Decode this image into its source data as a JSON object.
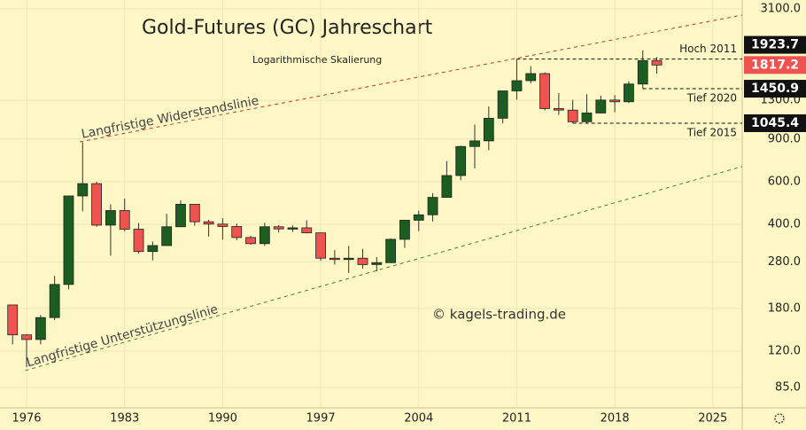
{
  "chart_data": {
    "type": "candlestick",
    "title": "Gold-Futures (GC) Jahreschart",
    "subtitle": "Logarithmische Skalierung",
    "watermark": "© kagels-trading.de",
    "x": [
      1975,
      1976,
      1977,
      1978,
      1979,
      1980,
      1981,
      1982,
      1983,
      1984,
      1985,
      1986,
      1987,
      1988,
      1989,
      1990,
      1991,
      1992,
      1993,
      1994,
      1995,
      1996,
      1997,
      1998,
      1999,
      2000,
      2001,
      2002,
      2003,
      2004,
      2005,
      2006,
      2007,
      2008,
      2009,
      2010,
      2011,
      2012,
      2013,
      2014,
      2015,
      2016,
      2017,
      2018,
      2019,
      2020,
      2021
    ],
    "open": [
      186,
      140,
      134,
      165,
      226,
      524,
      589,
      397,
      456,
      382,
      309,
      327,
      391,
      484,
      410,
      401,
      392,
      353,
      333,
      391,
      383,
      387,
      369,
      290,
      288,
      290,
      273,
      278,
      347,
      416,
      438,
      517,
      636,
      838,
      884,
      1096,
      1421,
      1566,
      1675,
      1202,
      1184,
      1060,
      1152,
      1303,
      1282,
      1517,
      1895
    ],
    "high": [
      186,
      141,
      169,
      245,
      524,
      873,
      600,
      484,
      511,
      405,
      340,
      442,
      502,
      485,
      418,
      424,
      403,
      359,
      406,
      397,
      396,
      416,
      369,
      313,
      326,
      317,
      293,
      350,
      417,
      456,
      538,
      730,
      845,
      1033,
      1226,
      1424,
      1923.7,
      1796,
      1696,
      1392,
      1307,
      1377,
      1358,
      1366,
      1557,
      2089,
      1959
    ],
    "low": [
      128,
      103,
      128,
      161,
      216,
      453,
      391,
      297,
      374,
      303,
      284,
      326,
      390,
      395,
      356,
      346,
      344,
      330,
      326,
      370,
      372,
      367,
      283,
      273,
      252,
      263,
      256,
      277,
      320,
      375,
      411,
      517,
      608,
      681,
      810,
      1044,
      1308,
      1527,
      1180,
      1131,
      1045.4,
      1046,
      1148,
      1160,
      1266,
      1450.9,
      1673
    ],
    "close": [
      140,
      134,
      165,
      226,
      524,
      589,
      397,
      456,
      382,
      309,
      327,
      391,
      484,
      410,
      401,
      392,
      353,
      333,
      391,
      383,
      387,
      369,
      290,
      288,
      290,
      273,
      278,
      347,
      416,
      438,
      517,
      636,
      838,
      884,
      1096,
      1421,
      1566,
      1675,
      1202,
      1184,
      1060,
      1152,
      1303,
      1282,
      1517,
      1895,
      1817.2
    ],
    "up_color": "#1b5e20",
    "down_color": "#ef5350",
    "log_scale": true,
    "grid": true,
    "xlim": [
      1974.1,
      2027.1
    ],
    "ylim": [
      70,
      3370
    ],
    "xticks": [
      1976,
      1983,
      1990,
      1997,
      2004,
      2011,
      2018,
      2025
    ],
    "yticks": [
      {
        "value": 3100,
        "label": "3100.0"
      },
      {
        "value": 1300,
        "label": "1300.0"
      },
      {
        "value": 900,
        "label": "900.0"
      },
      {
        "value": 600,
        "label": "600.0"
      },
      {
        "value": 400,
        "label": "400.0"
      },
      {
        "value": 280,
        "label": "280.0"
      },
      {
        "value": 180,
        "label": "180.0"
      },
      {
        "value": 120,
        "label": "120.0"
      },
      {
        "value": 85,
        "label": "85.0"
      }
    ],
    "trendlines": [
      {
        "label": "Langfristige Widerstandslinie",
        "color": "#c0392b",
        "points": [
          [
            1979.8,
            876
          ],
          [
            2027.1,
            2920
          ]
        ]
      },
      {
        "label": "Langfristige Unterstützungslinie",
        "color": "#4a7a3a",
        "points": [
          [
            1975.9,
            99.8
          ],
          [
            2027.1,
            693
          ]
        ]
      }
    ],
    "levels": [
      {
        "label": "Hoch 2011",
        "value": 1923.7,
        "start": 2011
      },
      {
        "label": "Tief 2020",
        "value": 1450.9,
        "start": 2020
      },
      {
        "label": "Tief 2015",
        "value": 1045.4,
        "start": 2015
      }
    ],
    "last_price": {
      "value": 1817.2,
      "color": "#ef5350"
    }
  }
}
